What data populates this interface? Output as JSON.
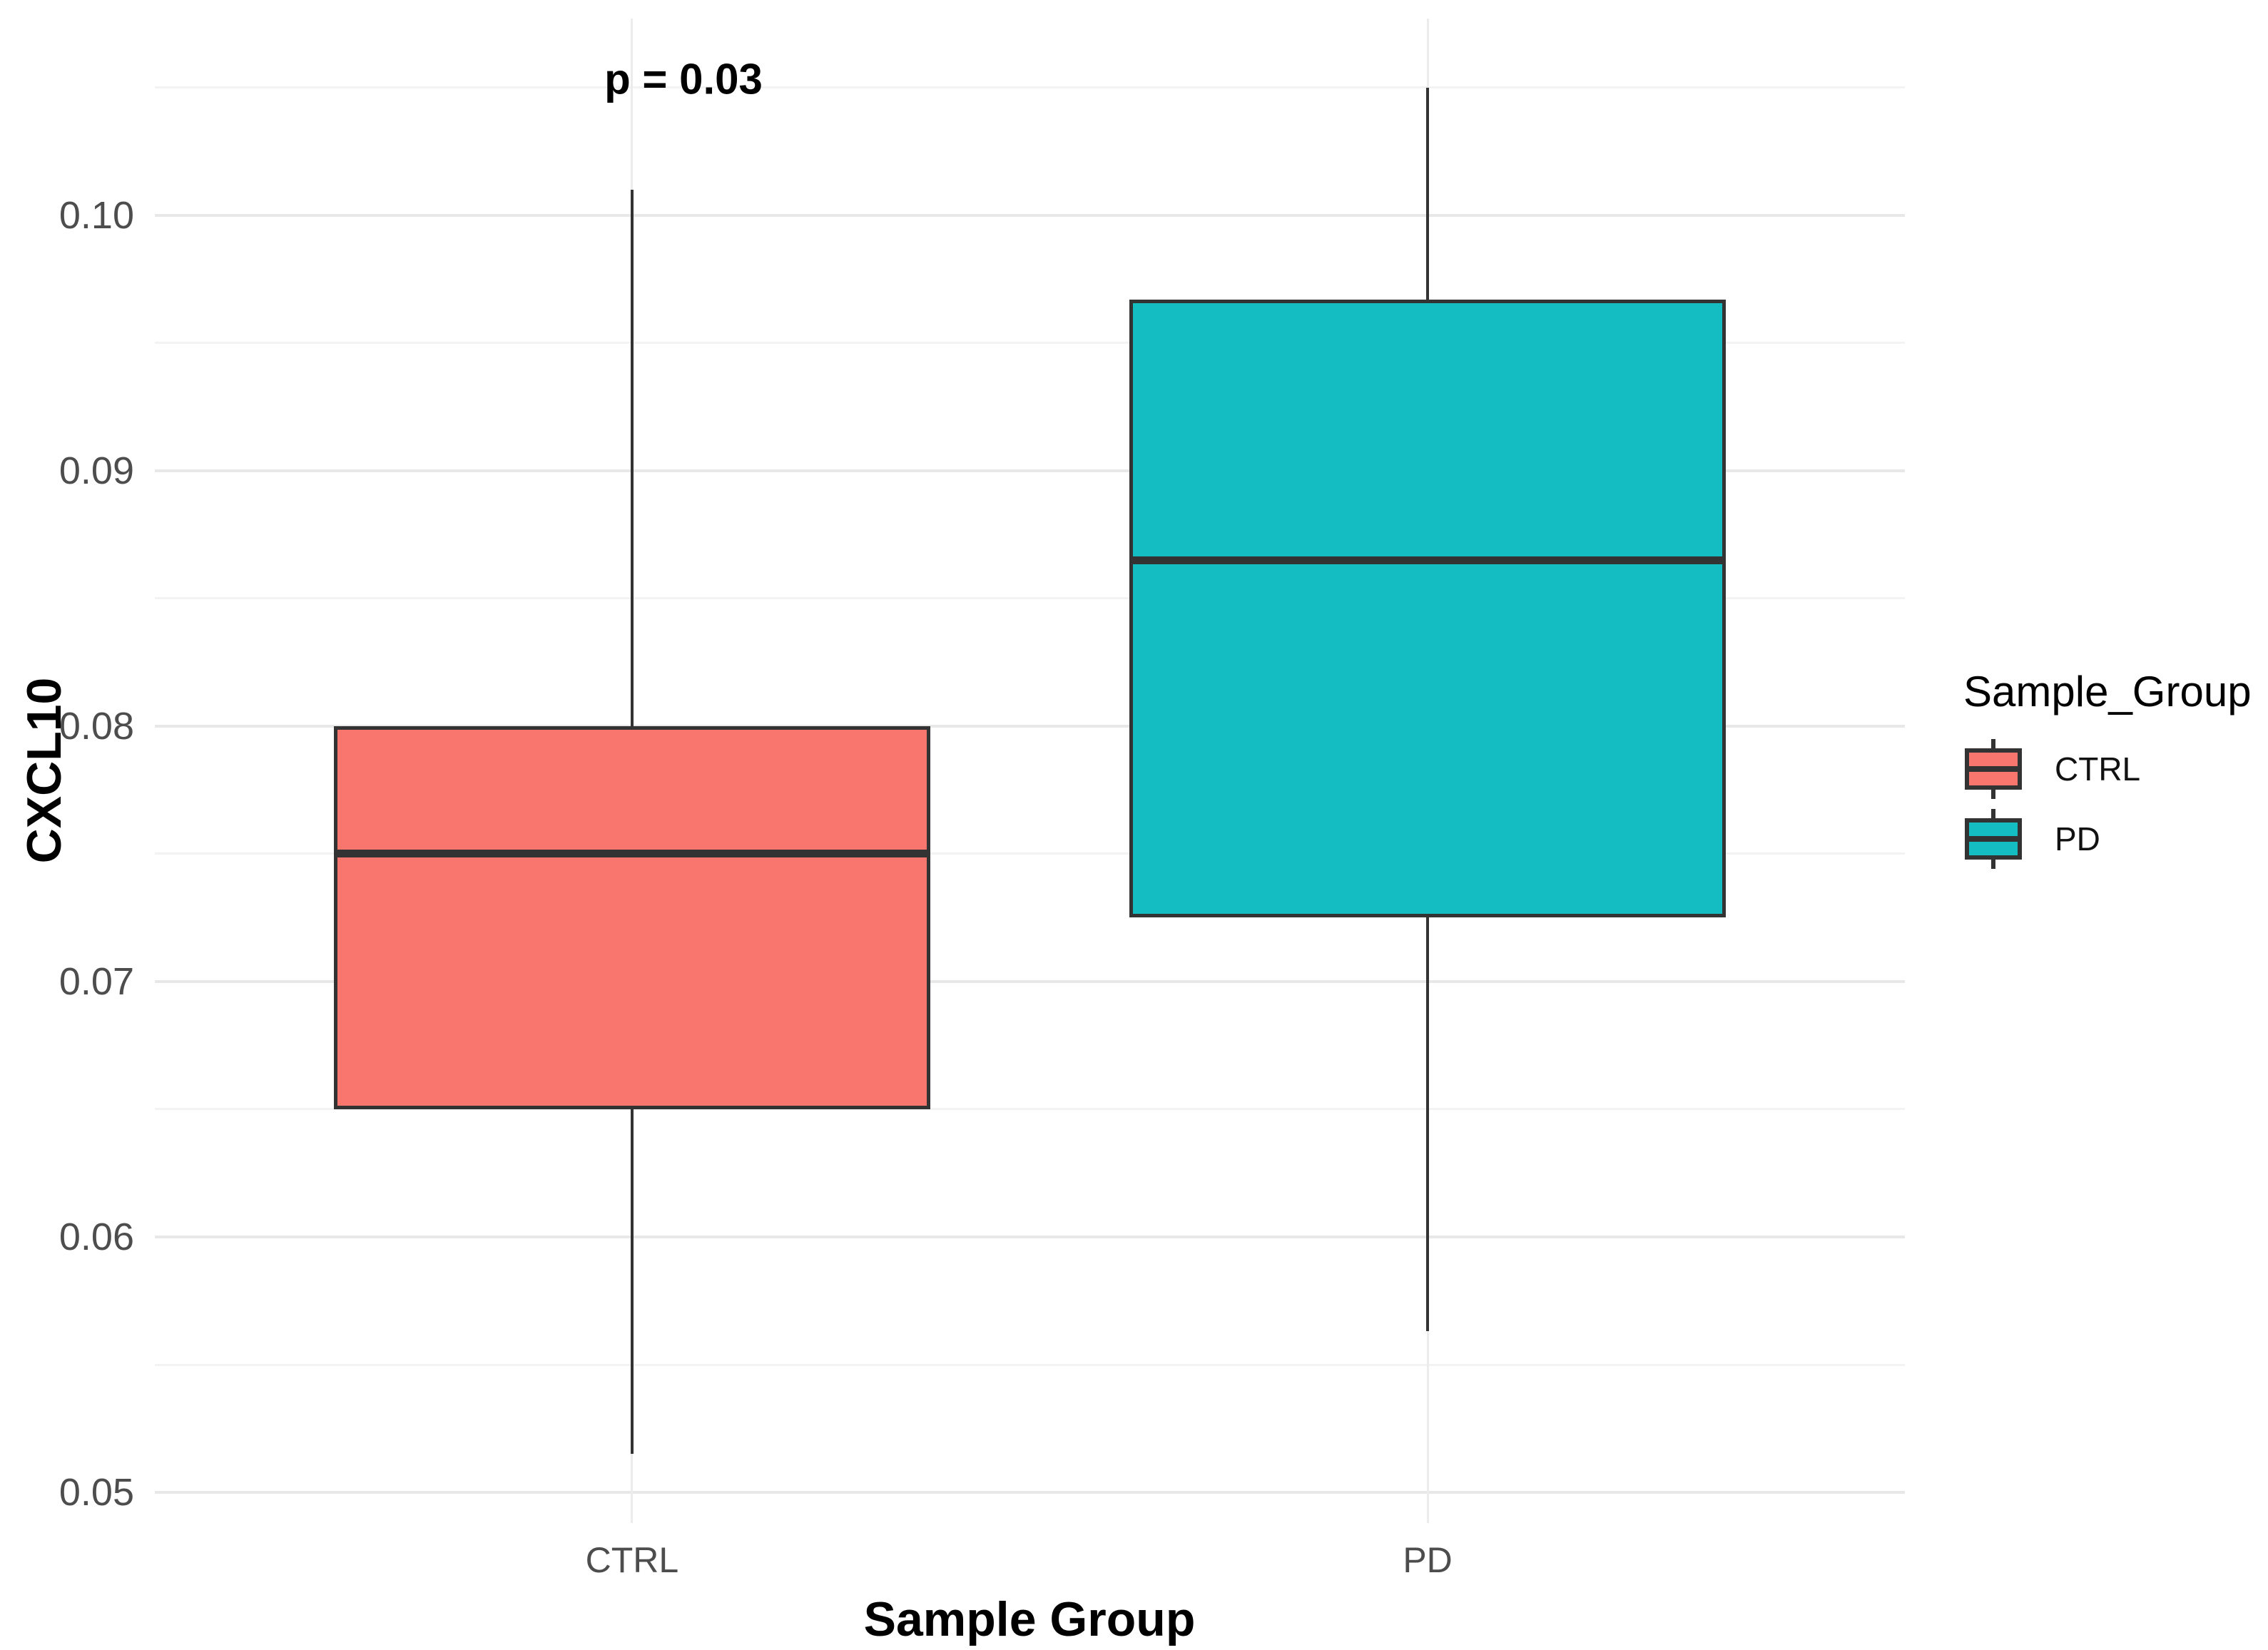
{
  "figure": {
    "annotation": {
      "text": "p = 0.03"
    },
    "x_axis": {
      "title": "Sample Group",
      "categories": [
        "CTRL",
        "PD"
      ]
    },
    "y_axis": {
      "title": "CXCL10",
      "tick_labels": [
        "0.05",
        "0.06",
        "0.07",
        "0.08",
        "0.09",
        "0.10"
      ]
    },
    "legend": {
      "title": "Sample_Group",
      "items": [
        {
          "label": "CTRL",
          "color": "#F8766D"
        },
        {
          "label": "PD",
          "color": "#14BDC2"
        }
      ]
    }
  },
  "chart_data": {
    "type": "box",
    "title": "",
    "xlabel": "Sample Group",
    "ylabel": "CXCL10",
    "categories": [
      "CTRL",
      "PD"
    ],
    "series": [
      {
        "name": "CTRL",
        "color": "#F8766D",
        "whisker_low": 0.0515,
        "q1": 0.065,
        "median": 0.075,
        "q3": 0.08,
        "whisker_high": 0.101
      },
      {
        "name": "PD",
        "color": "#14BDC2",
        "whisker_low": 0.0563,
        "q1": 0.0725,
        "median": 0.0865,
        "q3": 0.0967,
        "whisker_high": 0.105
      }
    ],
    "annotations": [
      {
        "text": "p = 0.03",
        "near_category": "CTRL",
        "y": 0.108
      }
    ],
    "ylim": [
      0.0488,
      0.1077
    ],
    "y_major_ticks": [
      0.05,
      0.06,
      0.07,
      0.08,
      0.09,
      0.1
    ],
    "y_minor_ticks": [
      0.055,
      0.065,
      0.075,
      0.085,
      0.095,
      0.105
    ],
    "grid": true,
    "legend_position": "right"
  },
  "colors": {
    "background": "#FFFFFF",
    "box_border": "#333333",
    "median": "#333333",
    "whisker": "#333333",
    "grid_major": "#E8E8E8",
    "grid_minor": "#F3F3F3",
    "grid_vertical": "#ECECEC",
    "tick_text": "#4D4D4D",
    "title_text": "#000000"
  }
}
